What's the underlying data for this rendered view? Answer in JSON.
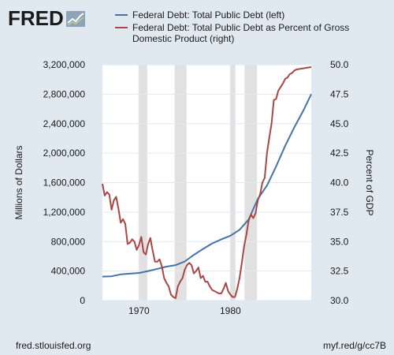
{
  "header": {
    "logo_text": "FRED",
    "logo_icon": "line-chart-icon"
  },
  "footer": {
    "source": "fred.stlouisfed.org",
    "short_url": "myf.red/g/cc7B"
  },
  "chart_data": {
    "type": "line",
    "series": [
      {
        "name": "Federal Debt: Total Public Debt (left)",
        "axis": "left",
        "color": "#4572a7",
        "points": [
          [
            1966.0,
            325000
          ],
          [
            1967.0,
            330000
          ],
          [
            1968.0,
            355000
          ],
          [
            1969.0,
            365000
          ],
          [
            1970.0,
            375000
          ],
          [
            1971.0,
            400000
          ],
          [
            1972.0,
            430000
          ],
          [
            1973.0,
            460000
          ],
          [
            1974.0,
            480000
          ],
          [
            1975.0,
            530000
          ],
          [
            1976.0,
            620000
          ],
          [
            1977.0,
            700000
          ],
          [
            1978.0,
            775000
          ],
          [
            1979.0,
            830000
          ],
          [
            1980.0,
            880000
          ],
          [
            1981.0,
            960000
          ],
          [
            1982.0,
            1100000
          ],
          [
            1983.0,
            1380000
          ],
          [
            1984.0,
            1560000
          ],
          [
            1985.0,
            1820000
          ],
          [
            1986.0,
            2100000
          ],
          [
            1987.0,
            2350000
          ],
          [
            1988.0,
            2580000
          ],
          [
            1988.85,
            2800000
          ]
        ]
      },
      {
        "name": "Federal Debt: Total Public Debt as Percent of Gross Domestic Product (right)",
        "axis": "right",
        "color": "#aa4643",
        "points": [
          [
            1966.0,
            39.9
          ],
          [
            1966.25,
            38.9
          ],
          [
            1966.5,
            39.2
          ],
          [
            1966.75,
            39.0
          ],
          [
            1967.0,
            37.7
          ],
          [
            1967.25,
            38.5
          ],
          [
            1967.5,
            38.8
          ],
          [
            1967.75,
            37.8
          ],
          [
            1968.0,
            36.6
          ],
          [
            1968.25,
            36.9
          ],
          [
            1968.5,
            36.5
          ],
          [
            1968.75,
            34.8
          ],
          [
            1969.0,
            34.9
          ],
          [
            1969.25,
            35.2
          ],
          [
            1969.5,
            35.0
          ],
          [
            1969.75,
            34.3
          ],
          [
            1970.0,
            34.7
          ],
          [
            1970.25,
            35.4
          ],
          [
            1970.5,
            34.1
          ],
          [
            1970.75,
            33.9
          ],
          [
            1971.0,
            34.8
          ],
          [
            1971.25,
            35.3
          ],
          [
            1971.5,
            34.2
          ],
          [
            1971.75,
            33.3
          ],
          [
            1972.0,
            33.3
          ],
          [
            1972.25,
            33.5
          ],
          [
            1972.5,
            32.9
          ],
          [
            1972.75,
            31.9
          ],
          [
            1973.0,
            31.5
          ],
          [
            1973.25,
            31.2
          ],
          [
            1973.5,
            30.5
          ],
          [
            1973.75,
            30.3
          ],
          [
            1974.0,
            30.2
          ],
          [
            1974.25,
            31.2
          ],
          [
            1974.5,
            31.6
          ],
          [
            1974.75,
            31.9
          ],
          [
            1975.0,
            32.6
          ],
          [
            1975.25,
            33.0
          ],
          [
            1975.5,
            33.2
          ],
          [
            1975.75,
            33.0
          ],
          [
            1976.0,
            32.3
          ],
          [
            1976.25,
            32.5
          ],
          [
            1976.5,
            32.8
          ],
          [
            1976.75,
            31.9
          ],
          [
            1977.0,
            32.1
          ],
          [
            1977.25,
            31.6
          ],
          [
            1977.5,
            31.6
          ],
          [
            1977.75,
            31.2
          ],
          [
            1978.0,
            30.9
          ],
          [
            1978.25,
            30.8
          ],
          [
            1978.5,
            30.7
          ],
          [
            1978.75,
            30.6
          ],
          [
            1979.0,
            30.6
          ],
          [
            1979.25,
            31.0
          ],
          [
            1979.5,
            31.5
          ],
          [
            1979.75,
            30.8
          ],
          [
            1980.0,
            30.5
          ],
          [
            1980.25,
            30.3
          ],
          [
            1980.5,
            30.3
          ],
          [
            1980.75,
            31.0
          ],
          [
            1981.0,
            31.9
          ],
          [
            1981.25,
            33.2
          ],
          [
            1981.5,
            34.6
          ],
          [
            1981.75,
            35.6
          ],
          [
            1982.0,
            36.8
          ],
          [
            1982.25,
            37.3
          ],
          [
            1982.5,
            37.0
          ],
          [
            1982.75,
            37.4
          ],
          [
            1983.0,
            38.5
          ],
          [
            1983.25,
            39.0
          ],
          [
            1983.5,
            40.0
          ],
          [
            1983.75,
            40.4
          ],
          [
            1984.0,
            42.5
          ],
          [
            1984.25,
            43.8
          ],
          [
            1984.5,
            45.0
          ],
          [
            1984.75,
            47.0
          ],
          [
            1985.0,
            47.1
          ],
          [
            1985.25,
            47.8
          ],
          [
            1985.5,
            48.1
          ],
          [
            1985.75,
            48.4
          ],
          [
            1986.0,
            48.8
          ],
          [
            1986.25,
            48.9
          ],
          [
            1986.5,
            49.2
          ],
          [
            1986.75,
            49.3
          ],
          [
            1987.0,
            49.5
          ],
          [
            1987.25,
            49.6
          ],
          [
            1988.85,
            49.8
          ]
        ]
      }
    ],
    "recessions": [
      [
        1969.95,
        1970.9
      ],
      [
        1973.9,
        1975.2
      ],
      [
        1980.0,
        1980.55
      ],
      [
        1981.55,
        1982.9
      ]
    ],
    "xlim": [
      1966.0,
      1988.85
    ],
    "xticks": [
      {
        "value": 1970,
        "label": "1970"
      },
      {
        "value": 1980,
        "label": "1980"
      }
    ],
    "ylim_left": [
      0,
      3200000
    ],
    "yticks_left": [
      {
        "value": 0,
        "label": "0"
      },
      {
        "value": 400000,
        "label": "400,000"
      },
      {
        "value": 800000,
        "label": "800,000"
      },
      {
        "value": 1200000,
        "label": "1,200,000"
      },
      {
        "value": 1600000,
        "label": "1,600,000"
      },
      {
        "value": 2000000,
        "label": "2,000,000"
      },
      {
        "value": 2400000,
        "label": "2,400,000"
      },
      {
        "value": 2800000,
        "label": "2,800,000"
      },
      {
        "value": 3200000,
        "label": "3,200,000"
      }
    ],
    "ylim_right": [
      30.0,
      50.0
    ],
    "yticks_right": [
      {
        "value": 30.0,
        "label": "30.0"
      },
      {
        "value": 32.5,
        "label": "32.5"
      },
      {
        "value": 35.0,
        "label": "35.0"
      },
      {
        "value": 37.5,
        "label": "37.5"
      },
      {
        "value": 40.0,
        "label": "40.0"
      },
      {
        "value": 42.5,
        "label": "42.5"
      },
      {
        "value": 45.0,
        "label": "45.0"
      },
      {
        "value": 47.5,
        "label": "47.5"
      },
      {
        "value": 50.0,
        "label": "50.0"
      }
    ],
    "ylabel_left": "Millions of Dollars",
    "ylabel_right": "Percent of GDP",
    "grid": true,
    "legend_position": "top"
  },
  "colors": {
    "background": "#e1e9f0",
    "plot_background": "#ffffff",
    "grid": "#e1e9f0",
    "recession_shade": "#e1e1e1"
  }
}
